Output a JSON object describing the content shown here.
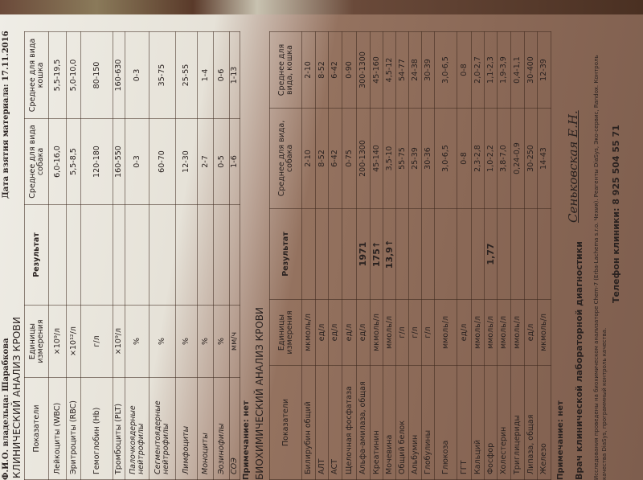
{
  "header": {
    "owner": "Ф.И.О. владельца: Шарабкова",
    "date": "Дата взятия материала: 17.11.2016"
  },
  "cbc": {
    "title": "КЛИНИЧЕСКИЙ АНАЛИЗ КРОВИ",
    "columns": [
      "Показатели",
      "Единицы измерения",
      "Результат",
      "Среднее для вида собака",
      "Среднее для вида кошка"
    ],
    "rows": [
      {
        "name": "Лейкоциты (WBC)",
        "unit": "×10⁹/л",
        "result": "",
        "dog": "6,0-16,0",
        "cat": "5,5-19,5"
      },
      {
        "name": "Эритроциты (RBC)",
        "unit": "×10¹²/л",
        "result": "",
        "dog": "5,5-8,5",
        "cat": "5,0-10,0"
      },
      {
        "name": "Гемоглобин (Hb)",
        "unit": "г/л",
        "result": "",
        "dog": "120-180",
        "cat": "80-150"
      },
      {
        "name": "Тромбоциты (PLT)",
        "unit": "×10⁹/л",
        "result": "",
        "dog": "160-550",
        "cat": "160-630"
      },
      {
        "name": "Палочкоядерные нейтрофилы",
        "unit": "%",
        "result": "",
        "dog": "0-3",
        "cat": "0-3",
        "italic": true
      },
      {
        "name": "Сегментоядерные нейтрофилы",
        "unit": "%",
        "result": "",
        "dog": "60-70",
        "cat": "35-75",
        "italic": true
      },
      {
        "name": "Лимфоциты",
        "unit": "%",
        "result": "",
        "dog": "12-30",
        "cat": "25-55",
        "italic": true
      },
      {
        "name": "Моноциты",
        "unit": "%",
        "result": "",
        "dog": "2-7",
        "cat": "1-4",
        "italic": true
      },
      {
        "name": "Эозинофилы",
        "unit": "%",
        "result": "",
        "dog": "0-5",
        "cat": "0-6",
        "italic": true
      },
      {
        "name": "СОЭ",
        "unit": "мм/ч",
        "result": "",
        "dog": "1-6",
        "cat": "1-13",
        "italic": true
      }
    ],
    "note": "Примечание: нет"
  },
  "bio": {
    "title": "БИОХИМИЧЕСКИЙ АНАЛИЗ КРОВИ",
    "columns": [
      "Показатели",
      "Единицы измерения",
      "Результат",
      "Среднее для вида, собака",
      "Среднее для вида, кошка"
    ],
    "rows": [
      {
        "name": "Билирубин общий",
        "unit": "мкмоль/л",
        "result": "",
        "dog": "2-10",
        "cat": "2-10"
      },
      {
        "name": "АЛТ",
        "unit": "ед/л",
        "result": "",
        "dog": "8-52",
        "cat": "8-52"
      },
      {
        "name": "АСТ",
        "unit": "ед/л",
        "result": "",
        "dog": "6-42",
        "cat": "6-42"
      },
      {
        "name": "Щелочная фосфатаза",
        "unit": "ед/л",
        "result": "",
        "dog": "0-75",
        "cat": "0-90"
      },
      {
        "name": "Альфа-амилаза, общая",
        "unit": "ед/л",
        "result": "1971",
        "dog": "200-1300",
        "cat": "300-1300"
      },
      {
        "name": "Креатинин",
        "unit": "мкмоль/л",
        "result": "175↑",
        "dog": "45-140",
        "cat": "45-160"
      },
      {
        "name": "Мочевина",
        "unit": "ммоль/л",
        "result": "13,9↑",
        "dog": "3,5-10",
        "cat": "4,5-12"
      },
      {
        "name": "Общий белок",
        "unit": "г/л",
        "result": "",
        "dog": "55-75",
        "cat": "54-77"
      },
      {
        "name": "Альбумин",
        "unit": "г/л",
        "result": "",
        "dog": "25-39",
        "cat": "24-38"
      },
      {
        "name": "Глобулины",
        "unit": "г/л",
        "result": "",
        "dog": "30-36",
        "cat": "30-39"
      },
      {
        "name": "Глюкоза",
        "unit": "ммоль/л",
        "result": "",
        "dog": "3,0-6,5",
        "cat": "3,0-6,5"
      },
      {
        "name": "ГГТ",
        "unit": "ед/л",
        "result": "",
        "dog": "0-8",
        "cat": "0-8"
      },
      {
        "name": "Кальций",
        "unit": "ммоль/л",
        "result": "",
        "dog": "2,3-2,8",
        "cat": "2,0-2,7"
      },
      {
        "name": "Фосфор",
        "unit": "ммоль/л",
        "result": "1,77",
        "dog": "1,0-2,2",
        "cat": "1,1-2,3"
      },
      {
        "name": "Холестерин",
        "unit": "ммоль/л",
        "result": "",
        "dog": "3,8-7,0",
        "cat": "1,9-3,9"
      },
      {
        "name": "Триглицериды",
        "unit": "ммоль/л",
        "result": "",
        "dog": "0,24-0,9",
        "cat": "0,4-1,1"
      },
      {
        "name": "Липаза, общая",
        "unit": "ед/л",
        "result": "",
        "dog": "30-250",
        "cat": "30-400"
      },
      {
        "name": "Железо",
        "unit": "мкмоль/л",
        "result": "",
        "dog": "14-43",
        "cat": "12-39"
      }
    ],
    "note": "Примечание: нет"
  },
  "footer": {
    "lab": "Врач клинической лабораторной диагностики",
    "signature": "Сеньковская Е.Н.",
    "method": "Исследования проведены на биохимическом анализаторе Chem-7 (Erba-Lachema s.r.o. Чехия). Реагенты DiaSys, Эко-сервис, Randox. Контроль",
    "method2": "качества DiaSys, программный контроль качества.",
    "phone": "Телефон клиники:  8 925 504 55 71"
  }
}
